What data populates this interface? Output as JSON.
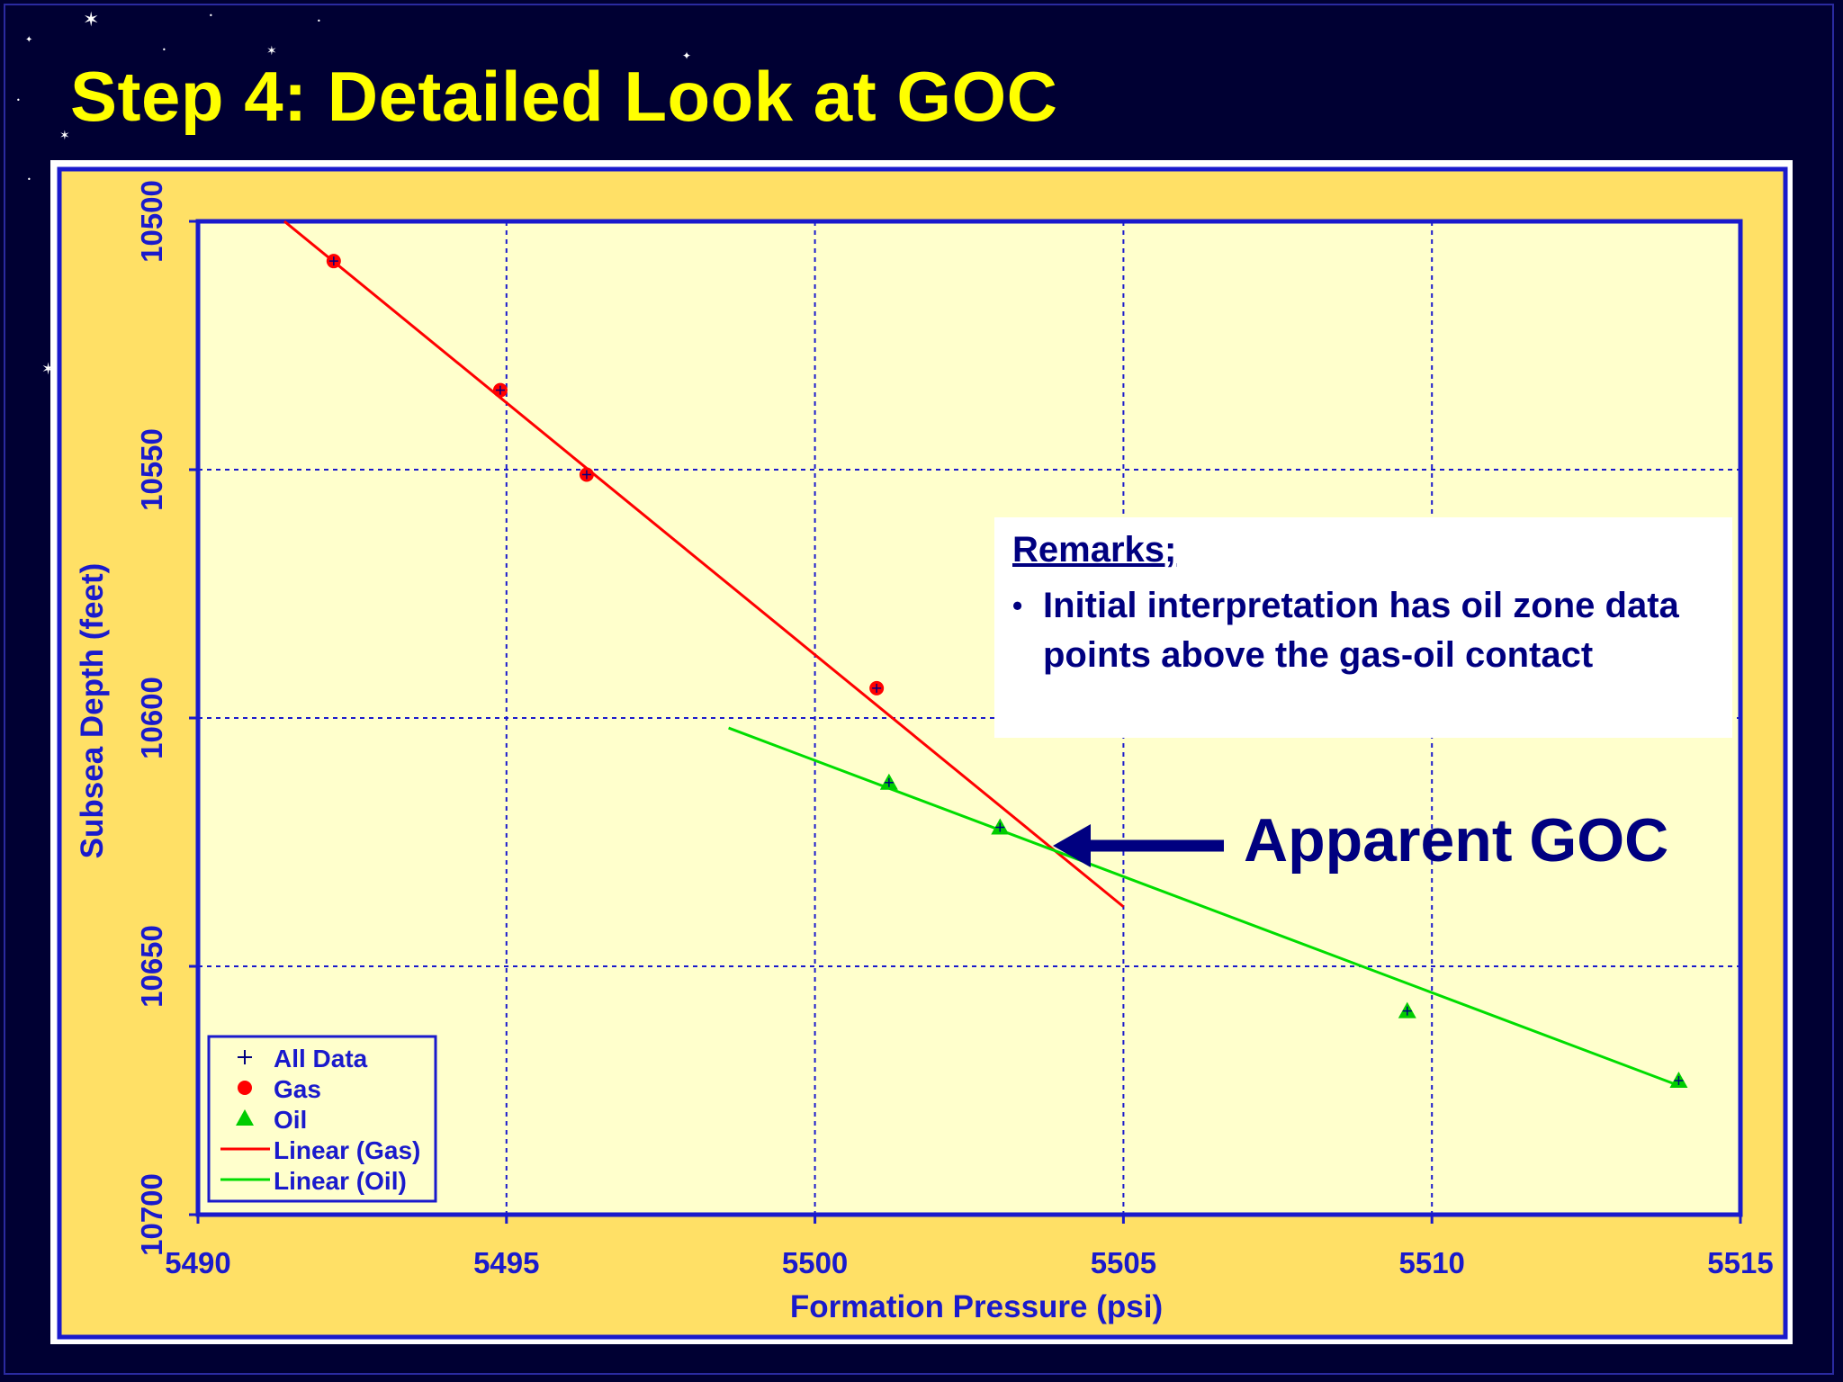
{
  "slide": {
    "title": "Step 4: Detailed Look at GOC",
    "background_color": "#000033",
    "title_color": "#ffff00"
  },
  "chart_data": {
    "type": "scatter",
    "xlabel": "Formation Pressure (psi)",
    "ylabel": "Subsea Depth (feet)",
    "xlim": [
      5490,
      5515
    ],
    "ylim": [
      10500,
      10700
    ],
    "y_inverted": true,
    "x_ticks": [
      "5490",
      "5495",
      "5500",
      "5505",
      "5510",
      "5515"
    ],
    "y_ticks": [
      "10500",
      "10550",
      "10600",
      "10650",
      "10700"
    ],
    "x_tick_values": [
      5490,
      5495,
      5500,
      5505,
      5510,
      5515
    ],
    "y_tick_values": [
      10500,
      10550,
      10600,
      10650,
      10700
    ],
    "grid": true,
    "legend_position": "bottom-left",
    "legend": [
      {
        "label": "All Data",
        "marker": "plus",
        "color": "#000080"
      },
      {
        "label": "Gas",
        "marker": "circle",
        "color": "#ff0000"
      },
      {
        "label": "Oil",
        "marker": "triangle",
        "color": "#00cc00"
      },
      {
        "label": "Linear (Gas)",
        "marker": "line",
        "color": "#ff0000"
      },
      {
        "label": "Linear (Oil)",
        "marker": "line",
        "color": "#00dd00"
      }
    ],
    "series": [
      {
        "name": "Gas",
        "kind": "points",
        "color": "#ff0000",
        "x": [
          5492.2,
          5494.9,
          5496.3,
          5501.0
        ],
        "y": [
          10508,
          10534,
          10551,
          10594
        ]
      },
      {
        "name": "Oil",
        "kind": "points",
        "color": "#00cc00",
        "x": [
          5501.2,
          5503.0,
          5509.6,
          5514.0
        ],
        "y": [
          10613,
          10622,
          10659,
          10673
        ]
      },
      {
        "name": "Linear (Gas)",
        "kind": "line",
        "color": "#ff0000",
        "x": [
          5491.4,
          5505.0
        ],
        "y": [
          10500,
          10638
        ]
      },
      {
        "name": "Linear (Oil)",
        "kind": "line",
        "color": "#00dd00",
        "x": [
          5498.6,
          5514.0
        ],
        "y": [
          10602,
          10674
        ]
      }
    ],
    "annotations": {
      "remarks_heading": "Remarks;",
      "remarks_bullet": "•",
      "remarks_text": "Initial interpretation has oil zone data points above the gas-oil contact",
      "goc_label": "Apparent GOC",
      "goc_point": {
        "x": 5503.8,
        "y": 10626
      }
    }
  }
}
